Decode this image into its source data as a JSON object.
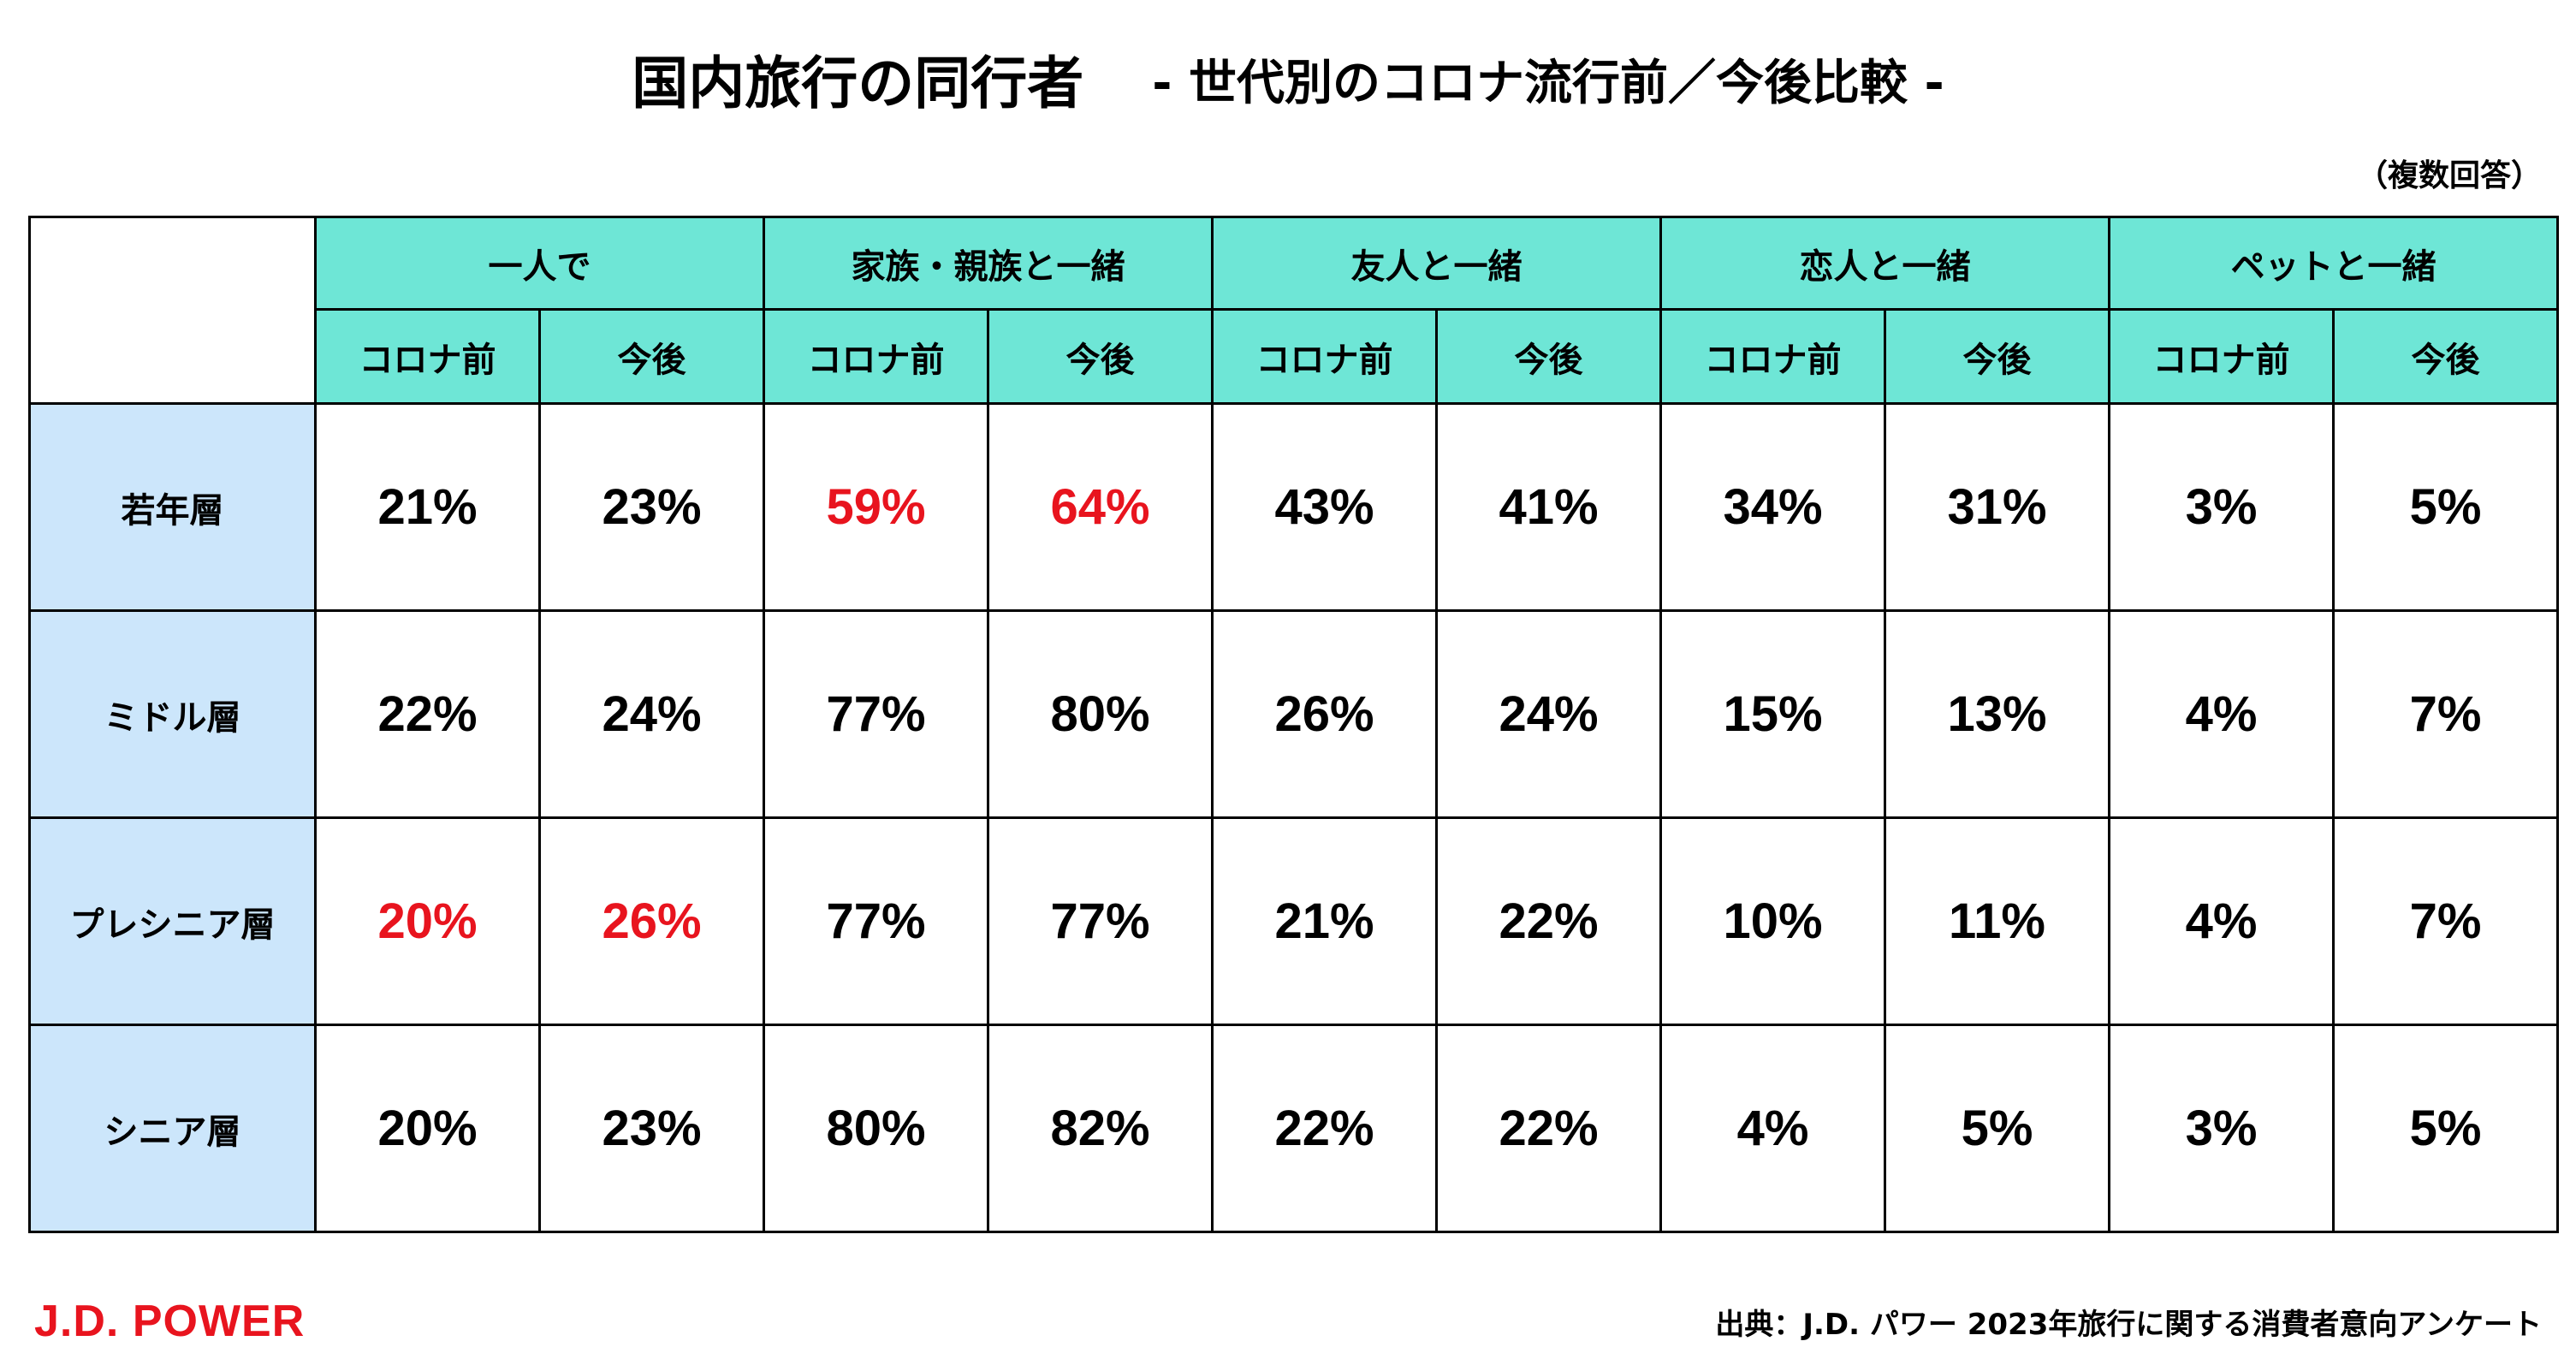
{
  "title": "国内旅行の同行者",
  "subtitle": "- 世代別のコロナ流行前／今後比較 -",
  "note": "（複数回答）",
  "colors": {
    "header_bg": "#6ee6d6",
    "row_header_bg": "#cce6fb",
    "highlight": "#e8141e"
  },
  "chart_data": {
    "type": "table",
    "groups": [
      "一人で",
      "家族・親族と一緒",
      "友人と一緒",
      "恋人と一緒",
      "ペットと一緒"
    ],
    "subheaders": [
      "コロナ前",
      "今後"
    ],
    "rows": [
      {
        "label": "若年層",
        "values": [
          "21%",
          "23%",
          "59%",
          "64%",
          "43%",
          "41%",
          "34%",
          "31%",
          "3%",
          "5%"
        ],
        "highlight": [
          false,
          false,
          true,
          true,
          false,
          false,
          false,
          false,
          false,
          false
        ]
      },
      {
        "label": "ミドル層",
        "values": [
          "22%",
          "24%",
          "77%",
          "80%",
          "26%",
          "24%",
          "15%",
          "13%",
          "4%",
          "7%"
        ],
        "highlight": [
          false,
          false,
          false,
          false,
          false,
          false,
          false,
          false,
          false,
          false
        ]
      },
      {
        "label": "プレシニア層",
        "values": [
          "20%",
          "26%",
          "77%",
          "77%",
          "21%",
          "22%",
          "10%",
          "11%",
          "4%",
          "7%"
        ],
        "highlight": [
          true,
          true,
          false,
          false,
          false,
          false,
          false,
          false,
          false,
          false
        ]
      },
      {
        "label": "シニア層",
        "values": [
          "20%",
          "23%",
          "80%",
          "82%",
          "22%",
          "22%",
          "4%",
          "5%",
          "3%",
          "5%"
        ],
        "highlight": [
          false,
          false,
          false,
          false,
          false,
          false,
          false,
          false,
          false,
          false
        ]
      }
    ]
  },
  "footer": {
    "logo": "J.D. POWER",
    "source": "出典：J.D. パワー 2023年旅行に関する消費者意向アンケート"
  }
}
